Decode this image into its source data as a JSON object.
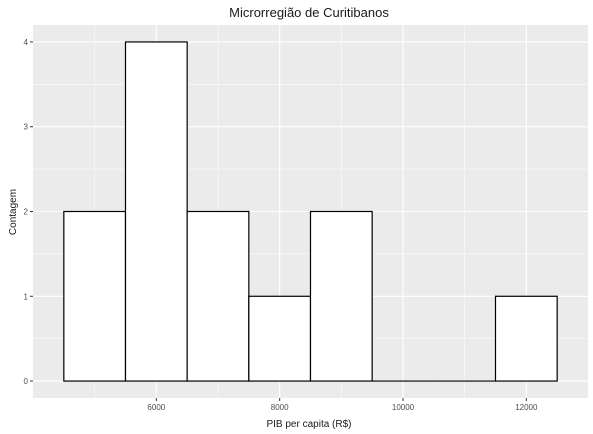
{
  "chart_data": {
    "type": "bar",
    "title": "Microrregião de  Curitibanos",
    "xlabel": "PIB per capita (R$)",
    "ylabel": "Contagem",
    "bins": [
      {
        "start": 4500,
        "end": 5500,
        "count": 2
      },
      {
        "start": 5500,
        "end": 6500,
        "count": 4
      },
      {
        "start": 6500,
        "end": 7500,
        "count": 2
      },
      {
        "start": 7500,
        "end": 8500,
        "count": 1
      },
      {
        "start": 8500,
        "end": 9500,
        "count": 2
      },
      {
        "start": 9500,
        "end": 10500,
        "count": 0
      },
      {
        "start": 10500,
        "end": 11500,
        "count": 0
      },
      {
        "start": 11500,
        "end": 12500,
        "count": 1
      }
    ],
    "xlim": [
      4000,
      13000
    ],
    "ylim": [
      -0.2,
      4.2
    ],
    "x_ticks": [
      6000,
      8000,
      10000,
      12000
    ],
    "x_tick_labels": [
      "6000",
      "8000",
      "10000",
      "12000"
    ],
    "x_minor_ticks": [
      5000,
      7000,
      9000,
      11000
    ],
    "y_ticks": [
      0,
      1,
      2,
      3,
      4
    ],
    "y_tick_labels": [
      "0",
      "1",
      "2",
      "3",
      "4"
    ],
    "y_minor_ticks": [
      0.5,
      1.5,
      2.5,
      3.5
    ],
    "grid": true,
    "colors": {
      "panel": "#ebebeb",
      "bar_fill": "#ffffff",
      "bar_stroke": "#000000"
    }
  }
}
